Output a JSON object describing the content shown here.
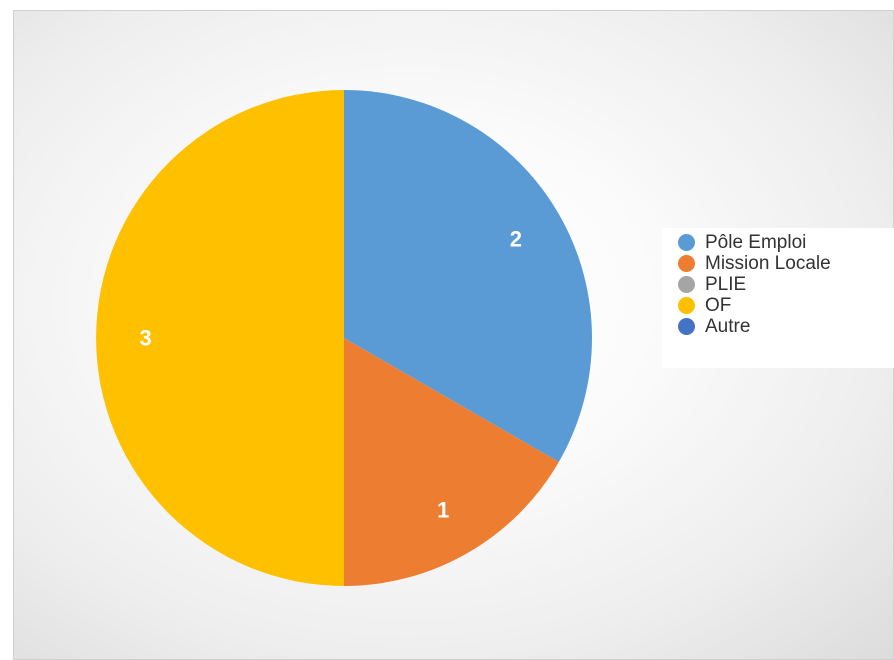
{
  "chart_data": {
    "type": "pie",
    "title": "",
    "categories": [
      "Pôle Emploi",
      "Mission Locale",
      "PLIE",
      "OF",
      "Autre"
    ],
    "values": [
      2,
      1,
      0,
      3,
      0
    ],
    "data_labels": [
      "2",
      "1",
      "",
      "3",
      ""
    ],
    "colors": [
      "#5b9bd5",
      "#ed7d31",
      "#a5a5a5",
      "#ffc000",
      "#4472c4"
    ],
    "start_angle_deg": 0,
    "direction": "clockwise",
    "legend_position": "right"
  },
  "legend": {
    "items": [
      {
        "label": "Pôle Emploi",
        "color": "#5b9bd5"
      },
      {
        "label": "Mission Locale",
        "color": "#ed7d31"
      },
      {
        "label": "PLIE",
        "color": "#a5a5a5"
      },
      {
        "label": "OF",
        "color": "#ffc000"
      },
      {
        "label": "Autre",
        "color": "#4472c4"
      }
    ]
  }
}
